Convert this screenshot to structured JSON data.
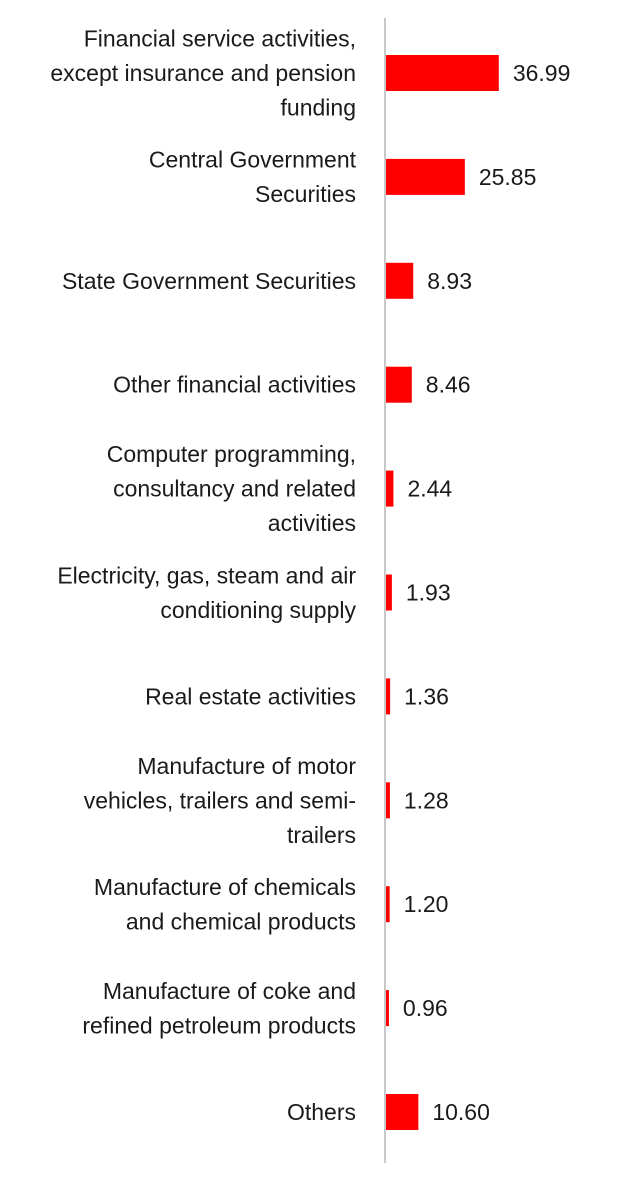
{
  "chart_data": {
    "type": "bar",
    "orientation": "horizontal",
    "categories": [
      [
        "Financial service activities,",
        "except insurance and pension",
        "funding"
      ],
      [
        "Central Government",
        "Securities"
      ],
      [
        "State Government Securities"
      ],
      [
        "Other financial activities"
      ],
      [
        "Computer programming,",
        "consultancy and related",
        "activities"
      ],
      [
        "Electricity, gas, steam and air",
        "conditioning supply"
      ],
      [
        "Real estate activities"
      ],
      [
        "Manufacture of motor",
        "vehicles, trailers and semi-",
        "trailers"
      ],
      [
        "Manufacture of chemicals",
        "and chemical products"
      ],
      [
        "Manufacture of coke and",
        "refined petroleum products"
      ],
      [
        "Others"
      ]
    ],
    "values": [
      36.99,
      25.85,
      8.93,
      8.46,
      2.44,
      1.93,
      1.36,
      1.28,
      1.2,
      0.96,
      10.6
    ],
    "value_labels": [
      "36.99",
      "25.85",
      "8.93",
      "8.46",
      "2.44",
      "1.93",
      "1.36",
      "1.28",
      "1.20",
      "0.96",
      "10.60"
    ],
    "bar_color": "#ff0000",
    "axis_color": "#c8c8c8",
    "grid": false,
    "legend": "none"
  }
}
